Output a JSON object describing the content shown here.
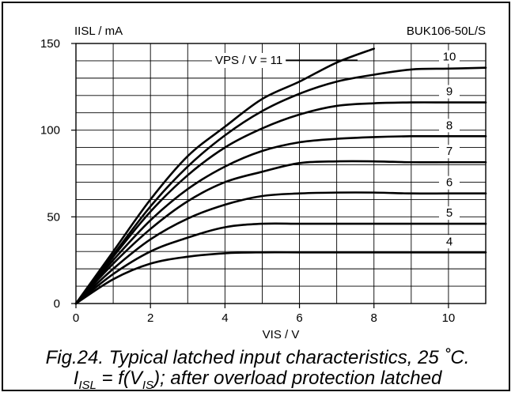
{
  "chart_data": {
    "type": "line",
    "title": "",
    "device": "BUK106-50L/S",
    "ylabel": "IISL / mA",
    "xlabel": "VIS / V",
    "xlim": [
      0,
      11
    ],
    "ylim": [
      0,
      150
    ],
    "x_ticks": [
      0,
      2,
      4,
      6,
      8,
      10
    ],
    "y_ticks": [
      0,
      50,
      100,
      150
    ],
    "grid": true,
    "series_param_label": "VPS / V = 11",
    "series": [
      {
        "name": "11",
        "points": [
          [
            0,
            0
          ],
          [
            1,
            30
          ],
          [
            2,
            60
          ],
          [
            3,
            85
          ],
          [
            4,
            102
          ],
          [
            5,
            118
          ],
          [
            6,
            128
          ],
          [
            7,
            139
          ],
          [
            8,
            147
          ]
        ]
      },
      {
        "name": "10",
        "points": [
          [
            0,
            0
          ],
          [
            1,
            28
          ],
          [
            2,
            56
          ],
          [
            3,
            79
          ],
          [
            4,
            97
          ],
          [
            5,
            111
          ],
          [
            6,
            121
          ],
          [
            7,
            128
          ],
          [
            8,
            132
          ],
          [
            9,
            135
          ],
          [
            10,
            135.5
          ],
          [
            11,
            136
          ]
        ]
      },
      {
        "name": "9",
        "points": [
          [
            0,
            0
          ],
          [
            1,
            27
          ],
          [
            2,
            53
          ],
          [
            3,
            74
          ],
          [
            4,
            90
          ],
          [
            5,
            101
          ],
          [
            6,
            109
          ],
          [
            7,
            114
          ],
          [
            8,
            115.5
          ],
          [
            9,
            116
          ],
          [
            10,
            116
          ],
          [
            11,
            116
          ]
        ]
      },
      {
        "name": "8",
        "points": [
          [
            0,
            0
          ],
          [
            1,
            25
          ],
          [
            2,
            48
          ],
          [
            3,
            66
          ],
          [
            4,
            79
          ],
          [
            5,
            88
          ],
          [
            6,
            93
          ],
          [
            7,
            95
          ],
          [
            8,
            96
          ],
          [
            9,
            96.5
          ],
          [
            10,
            96.5
          ],
          [
            11,
            96.5
          ]
        ]
      },
      {
        "name": "7",
        "points": [
          [
            0,
            0
          ],
          [
            1,
            23
          ],
          [
            2,
            43
          ],
          [
            3,
            59
          ],
          [
            4,
            70
          ],
          [
            5,
            76
          ],
          [
            6,
            81
          ],
          [
            7,
            82
          ],
          [
            8,
            82
          ],
          [
            9,
            81.5
          ],
          [
            10,
            81.5
          ],
          [
            11,
            81.5
          ]
        ]
      },
      {
        "name": "6",
        "points": [
          [
            0,
            0
          ],
          [
            1,
            20
          ],
          [
            2,
            37
          ],
          [
            3,
            49
          ],
          [
            4,
            57
          ],
          [
            5,
            62
          ],
          [
            6,
            63.5
          ],
          [
            7,
            64
          ],
          [
            8,
            64
          ],
          [
            9,
            63.5
          ],
          [
            10,
            63.5
          ],
          [
            11,
            63.5
          ]
        ]
      },
      {
        "name": "5",
        "points": [
          [
            0,
            0
          ],
          [
            1,
            17
          ],
          [
            2,
            30
          ],
          [
            3,
            38
          ],
          [
            4,
            44
          ],
          [
            5,
            46
          ],
          [
            6,
            46
          ],
          [
            7,
            46
          ],
          [
            8,
            46
          ],
          [
            9,
            46
          ],
          [
            10,
            46
          ],
          [
            11,
            46
          ]
        ]
      },
      {
        "name": "4",
        "points": [
          [
            0,
            0
          ],
          [
            1,
            14
          ],
          [
            2,
            23
          ],
          [
            3,
            27
          ],
          [
            4,
            29
          ],
          [
            5,
            29.5
          ],
          [
            6,
            29.5
          ],
          [
            7,
            29.5
          ],
          [
            8,
            29.5
          ],
          [
            9,
            29.5
          ],
          [
            10,
            29.5
          ],
          [
            11,
            29.5
          ]
        ]
      }
    ],
    "curve_labels": [
      "10",
      "9",
      "8",
      "7",
      "6",
      "5",
      "4"
    ]
  },
  "caption": {
    "line1": "Fig.24.   Typical latched input characteristics, 25 ˚C.",
    "line2_prefix": "I",
    "line2_sub1": "ISL",
    "line2_mid": " = f(V",
    "line2_sub2": "IS",
    "line2_suffix": "); after overload protection latched"
  }
}
